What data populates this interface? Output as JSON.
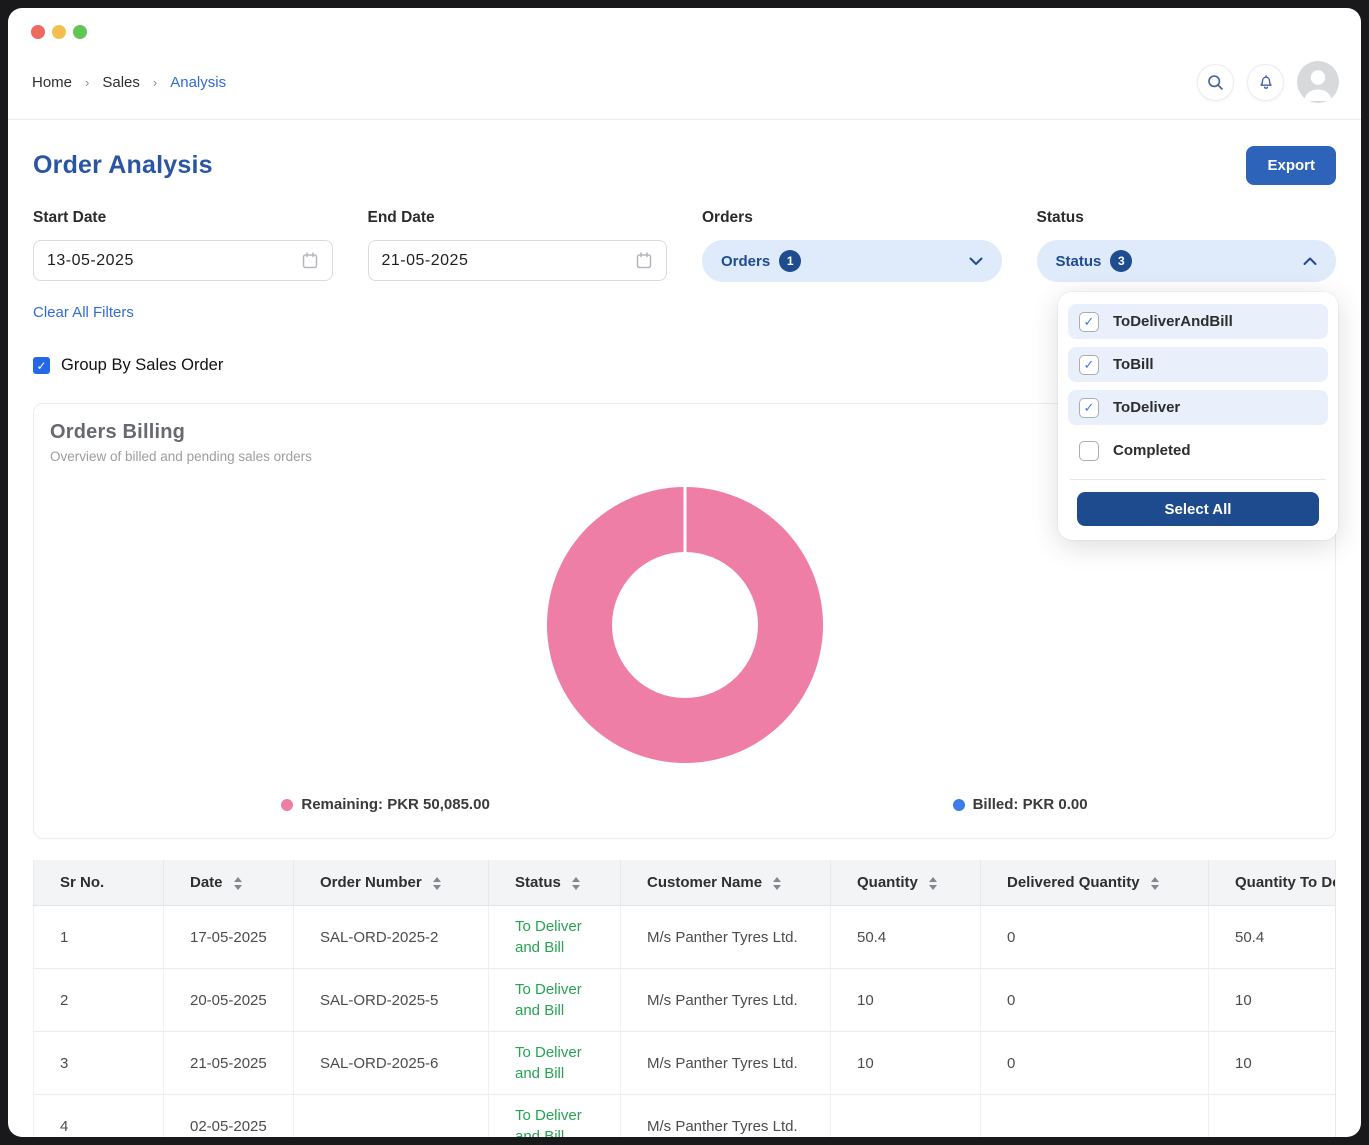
{
  "window": {
    "traffic_lights": [
      "#ee6a5f",
      "#f4bf4f",
      "#61c454"
    ]
  },
  "header": {
    "breadcrumb": [
      {
        "label": "Home",
        "active": false
      },
      {
        "label": "Sales",
        "active": false
      },
      {
        "label": "Analysis",
        "active": true
      }
    ]
  },
  "page": {
    "title": "Order Analysis",
    "export_label": "Export"
  },
  "filters": {
    "start_date": {
      "label": "Start Date",
      "value": "13-05-2025"
    },
    "end_date": {
      "label": "End Date",
      "value": "21-05-2025"
    },
    "orders": {
      "label": "Orders",
      "button_text": "Orders",
      "count": "1",
      "state": "collapsed"
    },
    "status": {
      "label": "Status",
      "button_text": "Status",
      "count": "3",
      "state": "expanded"
    },
    "clear_all_label": "Clear All Filters",
    "group_by_label": "Group By Sales Order",
    "group_by_checked": true
  },
  "status_dropdown": {
    "options": [
      {
        "label": "ToDeliverAndBill",
        "checked": true
      },
      {
        "label": "ToBill",
        "checked": true
      },
      {
        "label": "ToDeliver",
        "checked": true
      },
      {
        "label": "Completed",
        "checked": false
      }
    ],
    "select_all_label": "Select All"
  },
  "chart_data": {
    "type": "pie",
    "donut": true,
    "title": "Orders Billing",
    "subtitle": "Overview of billed and pending sales orders",
    "series": [
      {
        "name": "Remaining",
        "value": 50085.0,
        "display": "Remaining: PKR 50,085.00",
        "color": "#ef7ea7"
      },
      {
        "name": "Billed",
        "value": 0.0,
        "display": "Billed: PKR 0.00",
        "color": "#3c7ce6"
      }
    ],
    "legend_position": "bottom"
  },
  "table": {
    "columns": [
      {
        "label": "Sr No.",
        "sortable": false
      },
      {
        "label": "Date",
        "sortable": true
      },
      {
        "label": "Order Number",
        "sortable": true
      },
      {
        "label": "Status",
        "sortable": true
      },
      {
        "label": "Customer Name",
        "sortable": true
      },
      {
        "label": "Quantity",
        "sortable": true
      },
      {
        "label": "Delivered Quantity",
        "sortable": true
      },
      {
        "label": "Quantity To Deliver",
        "sortable": true
      }
    ],
    "status_color": "#27a353",
    "rows": [
      {
        "sr": "1",
        "date": "17-05-2025",
        "order": "SAL-ORD-2025-2",
        "status": "To Deliver and Bill",
        "customer": "M/s Panther Tyres Ltd.",
        "qty": "50.4",
        "delivered": "0",
        "to_deliver": "50.4"
      },
      {
        "sr": "2",
        "date": "20-05-2025",
        "order": "SAL-ORD-2025-5",
        "status": "To Deliver and Bill",
        "customer": "M/s Panther Tyres Ltd.",
        "qty": "10",
        "delivered": "0",
        "to_deliver": "10"
      },
      {
        "sr": "3",
        "date": "21-05-2025",
        "order": "SAL-ORD-2025-6",
        "status": "To Deliver and Bill",
        "customer": "M/s Panther Tyres Ltd.",
        "qty": "10",
        "delivered": "0",
        "to_deliver": "10"
      },
      {
        "sr": "4",
        "date": "02-05-2025",
        "order": "",
        "status": "To Deliver and Bill",
        "customer": "M/s Panther Tyres Ltd.",
        "qty": "",
        "delivered": "",
        "to_deliver": ""
      }
    ]
  }
}
